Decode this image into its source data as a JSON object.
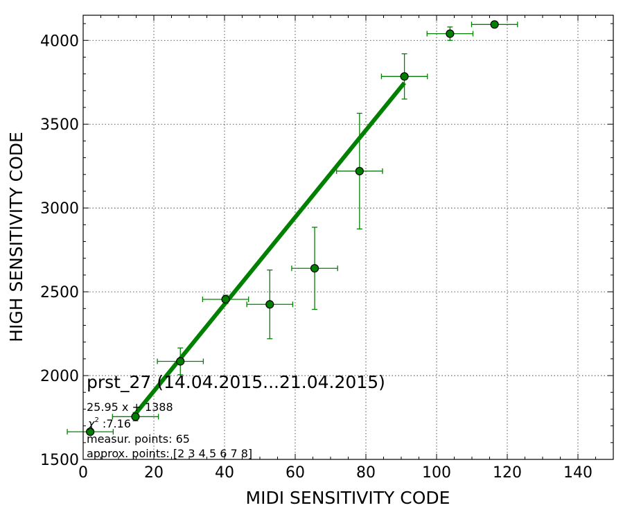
{
  "chart_data": {
    "type": "scatter",
    "xlabel": "MIDI SENSITIVITY CODE",
    "ylabel": "HIGH SENSITIVITY CODE",
    "xlim": [
      0,
      150
    ],
    "ylim": [
      1500,
      4150
    ],
    "x_ticks": [
      0,
      20,
      40,
      60,
      80,
      100,
      120,
      140
    ],
    "y_ticks": [
      1500,
      2000,
      2500,
      3000,
      3500,
      4000
    ],
    "x_minor_step": 5,
    "y_minor_step": 100,
    "grid": true,
    "colors": {
      "series": "#008000",
      "marker_edge": "#000000"
    },
    "series": [
      {
        "type": "errorbar",
        "points": [
          {
            "x": 2,
            "y": 1665,
            "xerr": 6.5,
            "yerr": 0
          },
          {
            "x": 14.8,
            "y": 1755,
            "xerr": 6.5,
            "yerr": 25
          },
          {
            "x": 27.5,
            "y": 2085,
            "xerr": 6.5,
            "yerr": 80
          },
          {
            "x": 40.3,
            "y": 2455,
            "xerr": 6.5,
            "yerr": 25
          },
          {
            "x": 52.8,
            "y": 2425,
            "xerr": 6.5,
            "yerr": 205
          },
          {
            "x": 65.5,
            "y": 2640,
            "xerr": 6.5,
            "yerr": 245
          },
          {
            "x": 78.2,
            "y": 3220,
            "xerr": 6.5,
            "yerr": 345
          },
          {
            "x": 90.9,
            "y": 3785,
            "xerr": 6.5,
            "yerr": 135
          },
          {
            "x": 103.8,
            "y": 4040,
            "xerr": 6.5,
            "yerr": 40
          },
          {
            "x": 116.4,
            "y": 4095,
            "xerr": 6.5,
            "yerr": 0
          }
        ]
      },
      {
        "type": "fit_line",
        "slope": 25.95,
        "intercept": 1388,
        "x_range": [
          14.8,
          90.9
        ]
      }
    ],
    "annotations": {
      "title": "prst_27 (14.04.2015...21.04.2015)",
      "fit": "25.95 x + 1388",
      "chi_symbol": "χ",
      "chi_exp": "2",
      "chi_value": " :7.16",
      "measur": "measur. points: 65",
      "approx": "approx. points: [2 3 4 5 6 7 8]"
    }
  }
}
